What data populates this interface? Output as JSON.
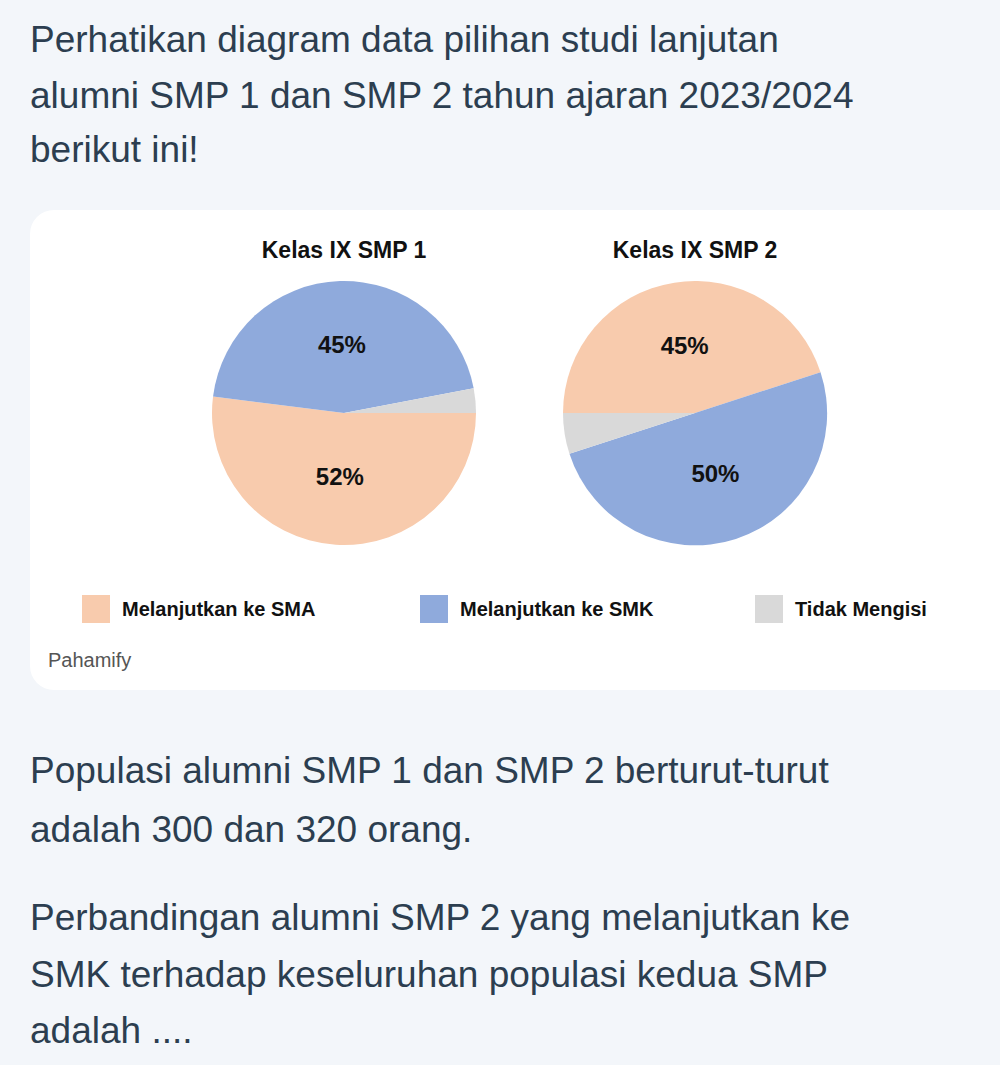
{
  "question": {
    "intro": [
      "Perhatikan diagram data pilihan studi lanjutan",
      "alumni SMP 1 dan SMP 2 tahun ajaran 2023/2024",
      "berikut ini!"
    ],
    "population": [
      "Populasi alumni SMP 1 dan SMP 2 berturut-turut",
      "adalah 300 dan 320 orang."
    ],
    "prompt": [
      "Perbandingan alumni SMP 2 yang melanjutkan ke",
      "SMK terhadap keseluruhan populasi kedua SMP",
      "adalah ...."
    ]
  },
  "watermark": "Pahamify",
  "chart_data": [
    {
      "type": "pie",
      "title": "Kelas IX SMP 1",
      "categories": [
        "Melanjutkan ke SMA",
        "Melanjutkan ke SMK",
        "Tidak Mengisi"
      ],
      "values": [
        52,
        45,
        3
      ],
      "value_labels": [
        "52%",
        "45%",
        null
      ],
      "colors": [
        "#f8cbad",
        "#8faadc",
        "#d9d9d9"
      ],
      "data_labels": true
    },
    {
      "type": "pie",
      "title": "Kelas IX SMP 2",
      "categories": [
        "Melanjutkan ke SMA",
        "Melanjutkan ke SMK",
        "Tidak Mengisi"
      ],
      "values": [
        45,
        50,
        5
      ],
      "value_labels": [
        "45%",
        "50%",
        null
      ],
      "colors": [
        "#f8cbad",
        "#8faadc",
        "#d9d9d9"
      ],
      "data_labels": true
    }
  ]
}
